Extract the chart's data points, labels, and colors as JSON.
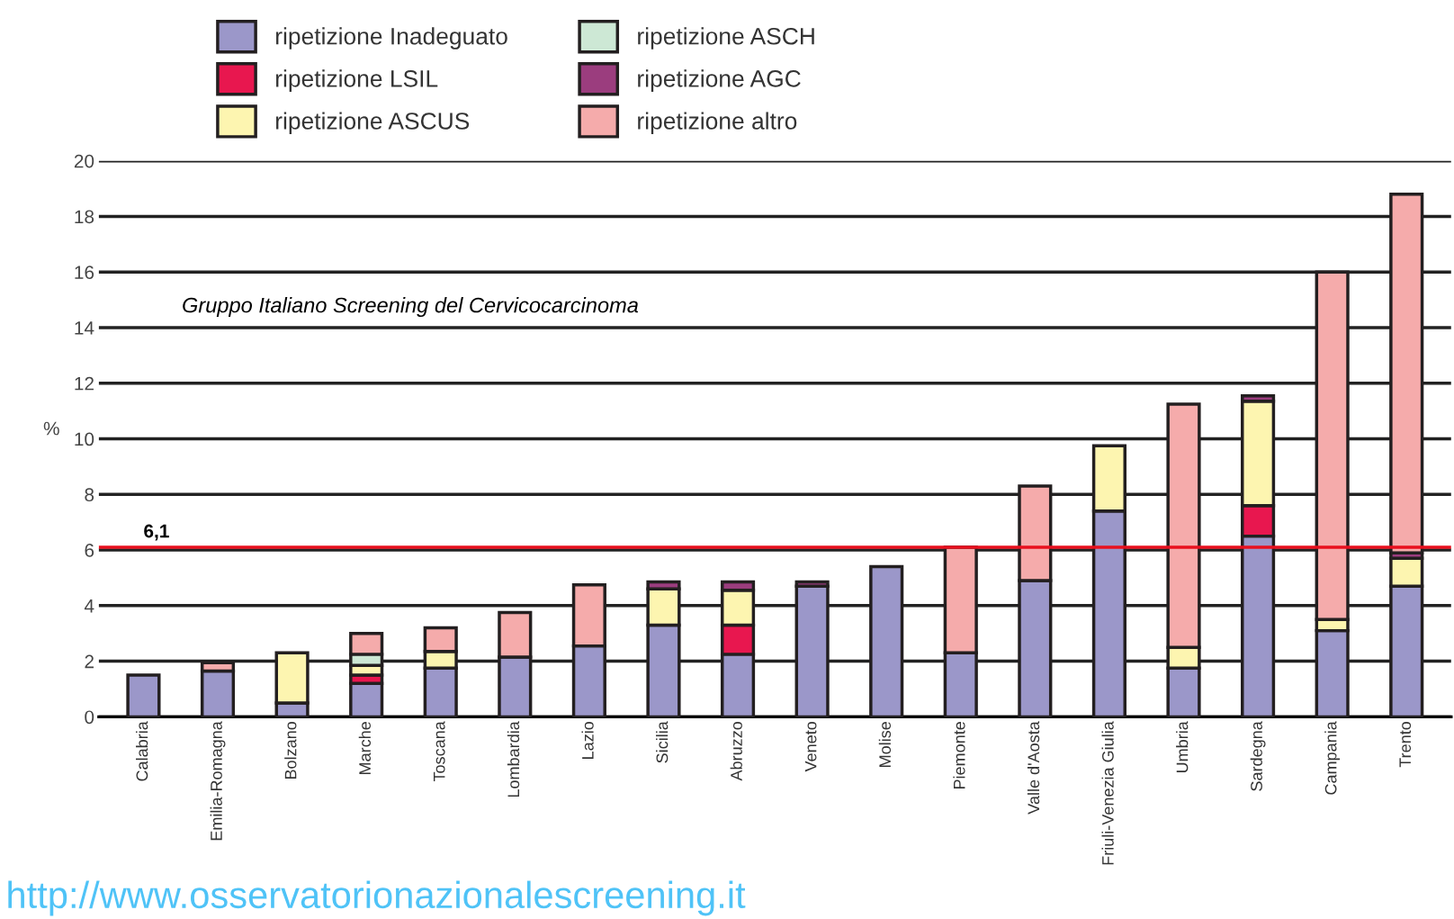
{
  "chart_data": {
    "type": "bar",
    "stacked": true,
    "ylabel": "%",
    "categories": [
      "Calabria",
      "Emilia-Romagna",
      "Bolzano",
      "Marche",
      "Toscana",
      "Lombardia",
      "Lazio",
      "Sicilia",
      "Abruzzo",
      "Veneto",
      "Molise",
      "Piemonte",
      "Valle d'Aosta",
      "Friuli-Venezia Giulia",
      "Umbria",
      "Sardegna",
      "Campania",
      "Trento"
    ],
    "series": [
      {
        "name": "ripetizione Inadeguato",
        "color": "#9b97c9",
        "values": [
          1.5,
          1.65,
          0.5,
          1.2,
          1.75,
          2.15,
          2.55,
          3.3,
          2.25,
          4.7,
          5.4,
          2.3,
          4.9,
          7.4,
          1.75,
          6.5,
          3.1,
          4.7
        ]
      },
      {
        "name": "ripetizione LSIL",
        "color": "#e8174f",
        "values": [
          null,
          null,
          null,
          0.3,
          null,
          null,
          null,
          null,
          1.05,
          null,
          null,
          null,
          null,
          null,
          null,
          1.1,
          null,
          null
        ]
      },
      {
        "name": "ripetizione ASCUS",
        "color": "#fdf5b0",
        "values": [
          null,
          null,
          1.8,
          0.35,
          0.6,
          null,
          null,
          1.3,
          1.25,
          null,
          null,
          null,
          null,
          2.35,
          0.75,
          3.75,
          0.4,
          1.0
        ]
      },
      {
        "name": "ripetizione ASCH",
        "color": "#cde8d5",
        "values": [
          null,
          null,
          null,
          0.4,
          null,
          null,
          null,
          null,
          null,
          null,
          null,
          null,
          null,
          null,
          null,
          null,
          null,
          null
        ]
      },
      {
        "name": "ripetizione AGC",
        "color": "#9b3d7e",
        "values": [
          null,
          null,
          null,
          null,
          null,
          null,
          null,
          0.25,
          0.3,
          0.15,
          null,
          null,
          null,
          null,
          null,
          0.2,
          null,
          0.2
        ]
      },
      {
        "name": "ripetizione altro",
        "color": "#f5abab",
        "values": [
          null,
          0.3,
          null,
          0.75,
          0.85,
          1.6,
          2.2,
          null,
          null,
          null,
          null,
          3.8,
          3.4,
          null,
          8.75,
          null,
          12.5,
          12.9
        ]
      }
    ],
    "ylim": [
      0,
      20
    ],
    "yticks": [
      0,
      2,
      4,
      6,
      8,
      10,
      12,
      14,
      16,
      18,
      20
    ],
    "grid": "y",
    "legend": "top",
    "ref_lines": [
      {
        "axis": "y",
        "value": 6.1,
        "label": "6,1",
        "color": "#e8101e"
      }
    ],
    "annotations": [
      "Gruppo Italiano Screening del Cervicocarcinoma",
      "http://www.osservatorionazionalescreening.it"
    ]
  }
}
